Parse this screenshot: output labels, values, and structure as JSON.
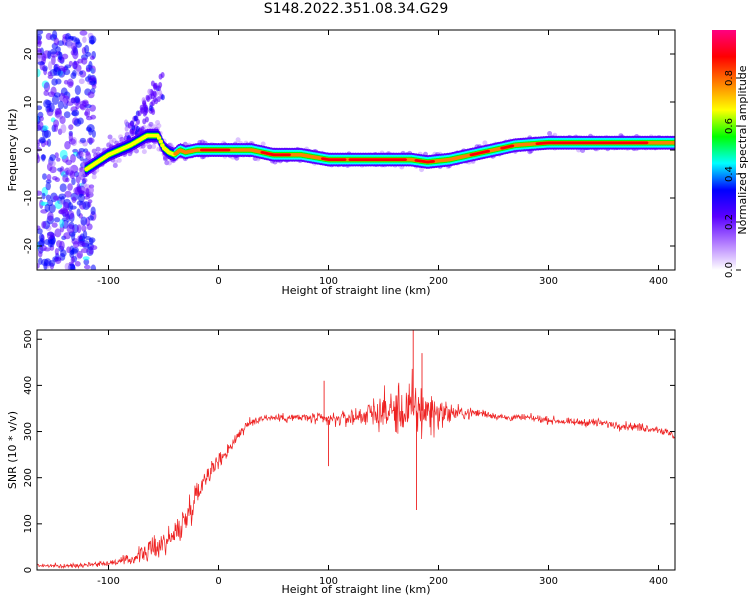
{
  "title": "S148.2022.351.08.34.G29",
  "chart_data": [
    {
      "type": "heatmap",
      "xlabel": "Height of straight line (km)",
      "ylabel": "Frequency (Hz)",
      "xlim": [
        -165,
        415
      ],
      "ylim": [
        -25,
        25
      ],
      "xticks": [
        -100,
        0,
        100,
        200,
        300,
        400
      ],
      "yticks": [
        -20,
        -10,
        0,
        10,
        20
      ],
      "ridge": {
        "x": [
          -120,
          -100,
          -80,
          -65,
          -55,
          -50,
          -45,
          -40,
          -35,
          -30,
          -20,
          -10,
          0,
          10,
          20,
          30,
          50,
          75,
          100,
          125,
          150,
          175,
          190,
          210,
          230,
          250,
          270,
          300,
          330,
          360,
          390,
          415
        ],
        "y": [
          -4,
          -1,
          1,
          3,
          3,
          0.5,
          -0.5,
          -1,
          0,
          -0.5,
          0,
          0,
          0,
          0,
          0,
          0,
          -1,
          -1,
          -2,
          -2,
          -2,
          -2,
          -2.5,
          -2,
          -1,
          0,
          1,
          1.5,
          1.5,
          1.5,
          1.5,
          1.5
        ]
      },
      "colorbar": {
        "label": "Normalized spectral amplitude",
        "ticks": [
          0.0,
          0.2,
          0.4,
          0.6,
          0.8
        ],
        "tick_labels": [
          "0.0",
          "0.2",
          "0.4",
          "0.6",
          "0.8"
        ],
        "colors": [
          "#ffffff",
          "#b37dff",
          "#5a00ff",
          "#0000ff",
          "#00ffff",
          "#00ff00",
          "#ffff00",
          "#ff8000",
          "#ff0000",
          "#ff0080"
        ]
      }
    },
    {
      "type": "line",
      "xlabel": "Height of straight line (km)",
      "ylabel": "SNR (10 * v/v)",
      "xlim": [
        -165,
        415
      ],
      "ylim": [
        0,
        520
      ],
      "xticks": [
        -100,
        0,
        100,
        200,
        300,
        400
      ],
      "yticks": [
        0,
        100,
        200,
        300,
        400,
        500
      ],
      "series_color": "#ee2222",
      "envelope": {
        "x": [
          -165,
          -140,
          -120,
          -100,
          -80,
          -70,
          -60,
          -50,
          -40,
          -30,
          -20,
          -10,
          0,
          10,
          20,
          30,
          40,
          60,
          80,
          100,
          120,
          140,
          160,
          175,
          190,
          200,
          220,
          240,
          260,
          280,
          300,
          320,
          340,
          360,
          380,
          400,
          415
        ],
        "y": [
          10,
          8,
          12,
          15,
          22,
          35,
          45,
          60,
          75,
          110,
          165,
          210,
          235,
          265,
          300,
          320,
          330,
          330,
          330,
          325,
          330,
          340,
          345,
          345,
          345,
          340,
          340,
          340,
          330,
          330,
          325,
          320,
          320,
          315,
          310,
          305,
          290
        ],
        "spread": [
          6,
          6,
          6,
          8,
          15,
          25,
          35,
          40,
          40,
          45,
          40,
          30,
          25,
          20,
          18,
          15,
          12,
          12,
          15,
          20,
          25,
          40,
          70,
          95,
          80,
          45,
          20,
          12,
          10,
          10,
          10,
          10,
          12,
          12,
          12,
          12,
          12
        ]
      },
      "points": [
        {
          "x": 95,
          "y": 320
        },
        {
          "x": 96,
          "y": 410
        },
        {
          "x": 100,
          "y": 225
        },
        {
          "x": 177,
          "y": 520
        },
        {
          "x": 180,
          "y": 130
        },
        {
          "x": 185,
          "y": 470
        }
      ]
    }
  ]
}
